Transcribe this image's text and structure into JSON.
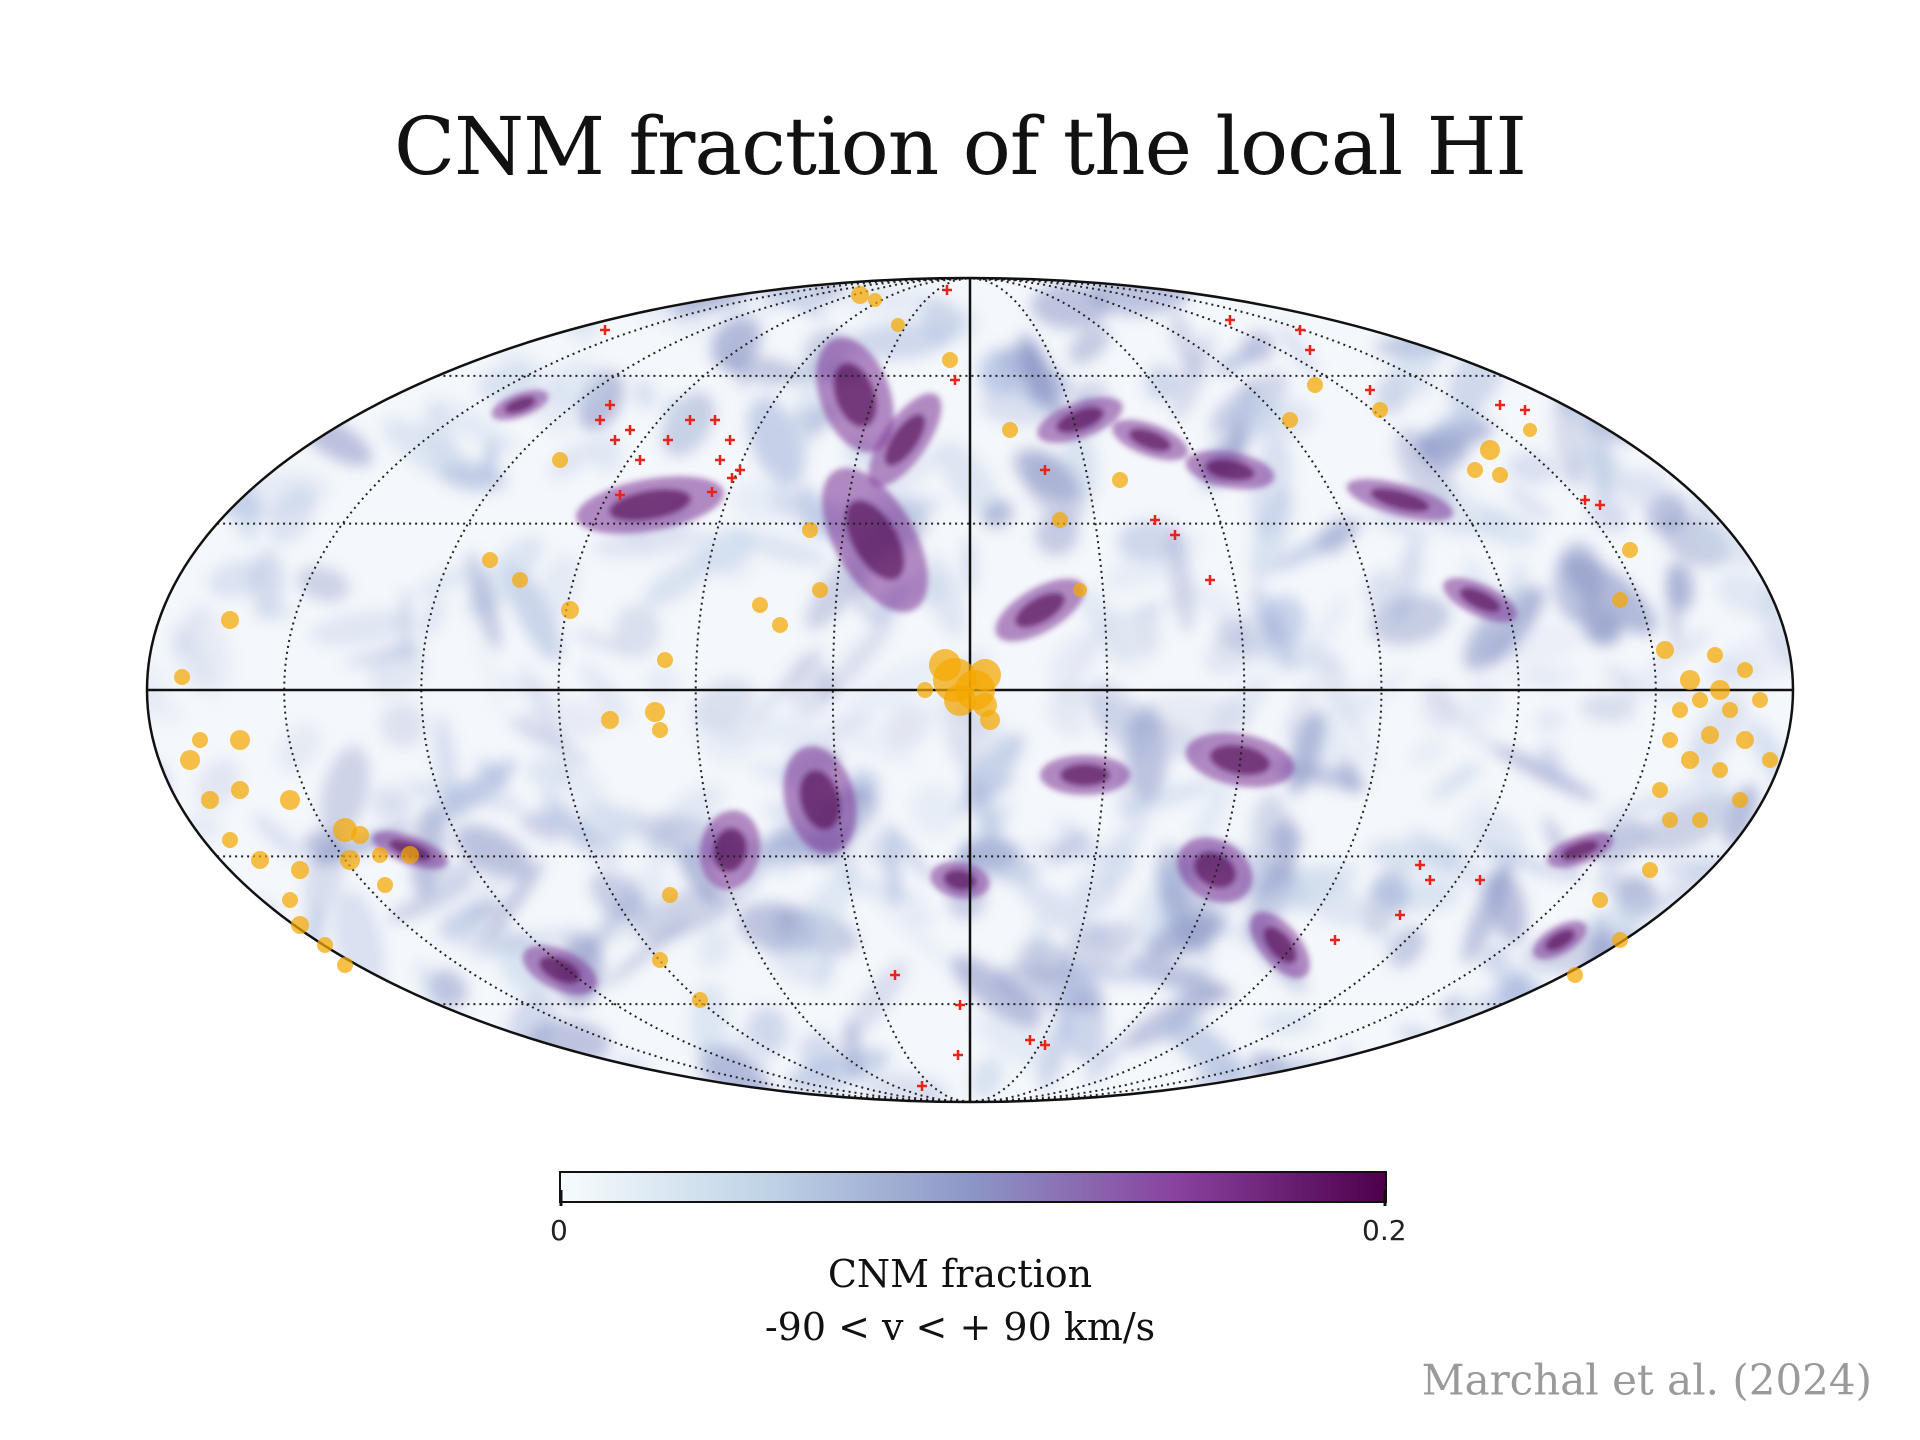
{
  "title": "CNM fraction of the local HI",
  "credit": "Marchal et al. (2024)",
  "chart_data": {
    "type": "heatmap",
    "projection": "mollweide",
    "title": "CNM fraction of the local HI",
    "colorbar": {
      "label": "CNM fraction",
      "sublabel": "-90 < v < + 90 km/s",
      "min": 0,
      "max": 0.2,
      "tick_labels": [
        "0",
        "0.2"
      ],
      "colors": [
        "#f7fcfd",
        "#bfd3e6",
        "#8c96c6",
        "#88419d",
        "#4d004b"
      ]
    },
    "graticule": {
      "longitude_step_deg": 30,
      "latitude_step_deg": 30,
      "style": "dotted"
    },
    "markers": [
      {
        "kind": "red-cross",
        "color": "#e8241a"
      },
      {
        "kind": "orange-circle",
        "color": "#f5a800"
      }
    ]
  }
}
